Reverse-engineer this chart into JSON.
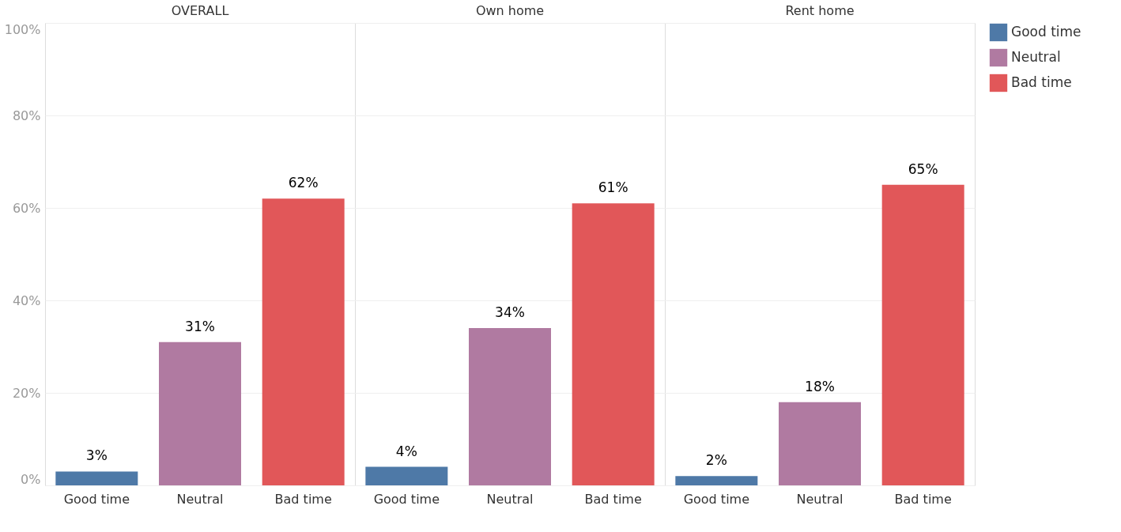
{
  "chart_data": {
    "type": "bar",
    "categories": [
      "OVERALL",
      "Own home",
      "Rent home"
    ],
    "series": [
      {
        "name": "Good time",
        "color": "#4e79a7",
        "values": [
          3,
          4,
          2
        ],
        "value_labels": [
          "3%",
          "4%",
          "2%"
        ]
      },
      {
        "name": "Neutral",
        "color": "#b07aa1",
        "values": [
          31,
          34,
          18
        ],
        "value_labels": [
          "31%",
          "34%",
          "18%"
        ]
      },
      {
        "name": "Bad time",
        "color": "#e15759",
        "values": [
          62,
          61,
          65
        ],
        "value_labels": [
          "62%",
          "61%",
          "65%"
        ]
      }
    ],
    "ylim": [
      0,
      100
    ],
    "yticks": [
      {
        "value": 0,
        "label": "0%"
      },
      {
        "value": 20,
        "label": "20%"
      },
      {
        "value": 40,
        "label": "40%"
      },
      {
        "value": 60,
        "label": "60%"
      },
      {
        "value": 80,
        "label": "80%"
      },
      {
        "value": 100,
        "label": "100%"
      }
    ],
    "grid": "y",
    "legend": "top right"
  }
}
